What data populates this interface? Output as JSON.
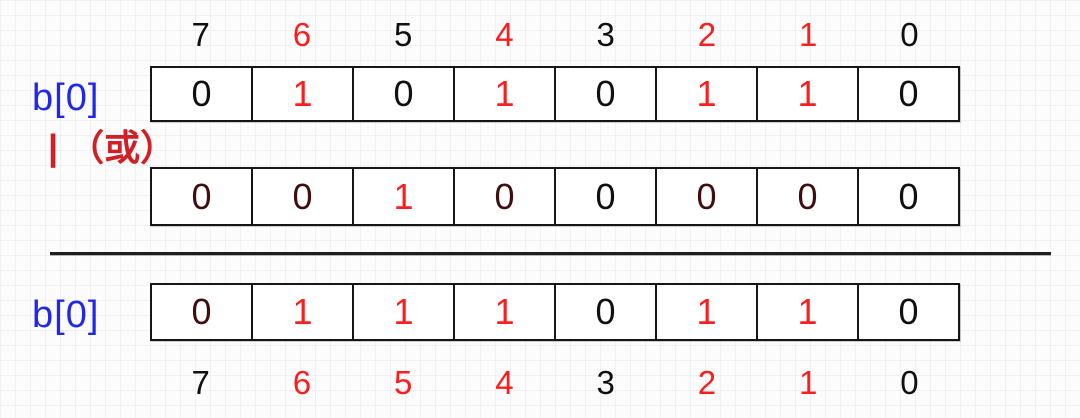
{
  "colors": {
    "black": "#101010",
    "red": "#fb1e1e",
    "maroon": "#400e0e",
    "blue": "#2127ea",
    "label_red": "#d02025",
    "border": "#161616"
  },
  "top_indices": {
    "cells": [
      {
        "text": "7",
        "color": "black"
      },
      {
        "text": "6",
        "color": "red"
      },
      {
        "text": "5",
        "color": "black"
      },
      {
        "text": "4",
        "color": "red"
      },
      {
        "text": "3",
        "color": "black"
      },
      {
        "text": "2",
        "color": "red"
      },
      {
        "text": "1",
        "color": "red"
      },
      {
        "text": "0",
        "color": "black"
      }
    ]
  },
  "operand_a": {
    "label": "b[0]",
    "cells": [
      {
        "text": "0",
        "color": "black"
      },
      {
        "text": "1",
        "color": "red"
      },
      {
        "text": "0",
        "color": "black"
      },
      {
        "text": "1",
        "color": "red"
      },
      {
        "text": "0",
        "color": "black"
      },
      {
        "text": "1",
        "color": "red"
      },
      {
        "text": "1",
        "color": "red"
      },
      {
        "text": "0",
        "color": "black"
      }
    ]
  },
  "operator": {
    "label": "| （或）"
  },
  "operand_b": {
    "cells": [
      {
        "text": "0",
        "color": "maroon"
      },
      {
        "text": "0",
        "color": "maroon"
      },
      {
        "text": "1",
        "color": "red"
      },
      {
        "text": "0",
        "color": "maroon"
      },
      {
        "text": "0",
        "color": "black"
      },
      {
        "text": "0",
        "color": "maroon"
      },
      {
        "text": "0",
        "color": "maroon"
      },
      {
        "text": "0",
        "color": "black"
      }
    ]
  },
  "result": {
    "label": "b[0]",
    "cells": [
      {
        "text": "0",
        "color": "maroon"
      },
      {
        "text": "1",
        "color": "red"
      },
      {
        "text": "1",
        "color": "red"
      },
      {
        "text": "1",
        "color": "red"
      },
      {
        "text": "0",
        "color": "black"
      },
      {
        "text": "1",
        "color": "red"
      },
      {
        "text": "1",
        "color": "red"
      },
      {
        "text": "0",
        "color": "black"
      }
    ]
  },
  "bottom_indices": {
    "cells": [
      {
        "text": "7",
        "color": "black"
      },
      {
        "text": "6",
        "color": "red"
      },
      {
        "text": "5",
        "color": "red"
      },
      {
        "text": "4",
        "color": "red"
      },
      {
        "text": "3",
        "color": "black"
      },
      {
        "text": "2",
        "color": "red"
      },
      {
        "text": "1",
        "color": "red"
      },
      {
        "text": "0",
        "color": "black"
      }
    ]
  }
}
